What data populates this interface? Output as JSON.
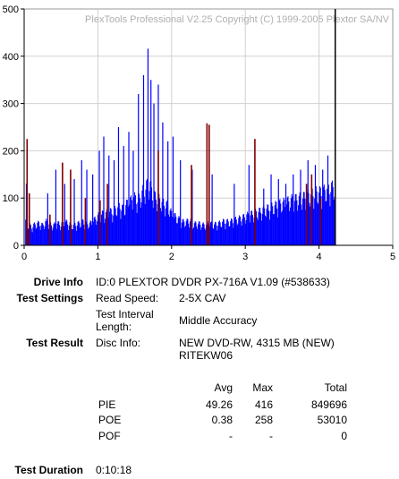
{
  "chart_data": {
    "type": "bar",
    "watermark": "PlexTools Professional V2.25 Copyright (C) 1999-2005 Plextor SA/NV",
    "xlim": [
      0,
      5
    ],
    "ylim": [
      0,
      500
    ],
    "x_ticks": [
      "0",
      "1",
      "2",
      "3",
      "4",
      "5"
    ],
    "y_ticks": [
      "0",
      "100",
      "200",
      "300",
      "400",
      "500"
    ],
    "grid": true,
    "end_marker_x": 4.22,
    "series": [
      {
        "color": "#0000ff",
        "x": [
          0.02,
          0.05,
          0.1,
          0.15,
          0.2,
          0.25,
          0.3,
          0.35,
          0.4,
          0.45,
          0.5,
          0.55,
          0.6,
          0.65,
          0.7,
          0.75,
          0.8,
          0.85,
          0.9,
          0.95,
          1.0,
          1.05,
          1.1,
          1.15,
          1.2,
          1.25,
          1.3,
          1.35,
          1.4,
          1.45,
          1.5,
          1.55,
          1.6,
          1.65,
          1.7,
          1.75,
          1.8,
          1.85,
          1.9,
          1.95,
          2.0,
          2.05,
          2.1,
          2.15,
          2.2,
          2.25,
          2.3,
          2.35,
          2.4,
          2.45,
          2.5,
          2.55,
          2.6,
          2.65,
          2.7,
          2.75,
          2.8,
          2.85,
          2.9,
          2.95,
          3.0,
          3.05,
          3.1,
          3.15,
          3.2,
          3.25,
          3.3,
          3.35,
          3.4,
          3.45,
          3.5,
          3.55,
          3.6,
          3.65,
          3.7,
          3.75,
          3.8,
          3.85,
          3.9,
          3.95,
          4.0,
          4.05,
          4.1,
          4.15,
          4.2
        ],
        "values": [
          45,
          40,
          35,
          40,
          42,
          38,
          45,
          40,
          38,
          42,
          40,
          45,
          42,
          38,
          40,
          42,
          45,
          40,
          42,
          48,
          55,
          60,
          58,
          65,
          62,
          70,
          75,
          68,
          80,
          85,
          90,
          85,
          100,
          110,
          120,
          95,
          90,
          85,
          80,
          75,
          60,
          55,
          50,
          45,
          45,
          48,
          40,
          42,
          40,
          38,
          42,
          40,
          40,
          42,
          45,
          45,
          45,
          48,
          50,
          52,
          55,
          58,
          60,
          62,
          65,
          68,
          70,
          72,
          75,
          78,
          80,
          82,
          85,
          88,
          88,
          90,
          92,
          95,
          98,
          100,
          100,
          102,
          105,
          108,
          112
        ],
        "spikes_x": [
          0.03,
          0.32,
          0.43,
          0.55,
          0.68,
          0.78,
          0.85,
          0.93,
          1.02,
          1.08,
          1.15,
          1.22,
          1.28,
          1.35,
          1.42,
          1.48,
          1.55,
          1.62,
          1.68,
          1.72,
          1.76,
          1.82,
          1.88,
          1.95,
          2.02,
          2.12,
          2.28,
          2.55,
          2.85,
          3.05,
          3.25,
          3.35,
          3.45,
          3.55,
          3.65,
          3.75,
          3.85,
          3.95,
          4.05,
          4.12,
          4.18
        ],
        "spikes": [
          130,
          110,
          160,
          130,
          140,
          180,
          160,
          150,
          200,
          230,
          190,
          180,
          250,
          210,
          240,
          200,
          320,
          360,
          416,
          350,
          300,
          340,
          260,
          220,
          230,
          180,
          160,
          150,
          130,
          170,
          120,
          150,
          140,
          130,
          150,
          160,
          180,
          170,
          160,
          190,
          120
        ]
      },
      {
        "color": "#800000",
        "x": [
          0.04,
          0.07,
          0.35,
          0.52,
          0.63,
          0.83,
          1.03,
          1.13,
          1.82,
          2.27,
          2.48,
          2.51,
          3.13,
          3.83,
          3.9,
          4.02
        ],
        "values": [
          225,
          110,
          65,
          175,
          160,
          100,
          95,
          130,
          200,
          170,
          258,
          255,
          225,
          130,
          150,
          100
        ]
      }
    ]
  },
  "info": {
    "drive_label": "Drive Info",
    "drive_value": "ID:0 PLEXTOR DVDR PX-716A V1.09 (#538633)",
    "settings_label": "Test Settings",
    "read_speed_label": "Read Speed:",
    "read_speed_value": "2-5X CAV",
    "interval_label_1": "Test Interval",
    "interval_label_2": "Length:",
    "interval_value": "Middle Accuracy",
    "result_label": "Test Result",
    "disc_label": "Disc Info:",
    "disc_value_1": "NEW DVD-RW, 4315 MB (NEW)",
    "disc_value_2": "RITEKW06",
    "duration_label": "Test Duration",
    "duration_value": "0:10:18"
  },
  "results_table": {
    "headers": [
      "Avg",
      "Max",
      "Total"
    ],
    "rows": [
      {
        "name": "PIE",
        "avg": "49.26",
        "max": "416",
        "total": "849696"
      },
      {
        "name": "POE",
        "avg": "0.38",
        "max": "258",
        "total": "53010"
      },
      {
        "name": "POF",
        "avg": "-",
        "max": "-",
        "total": "0"
      }
    ]
  }
}
